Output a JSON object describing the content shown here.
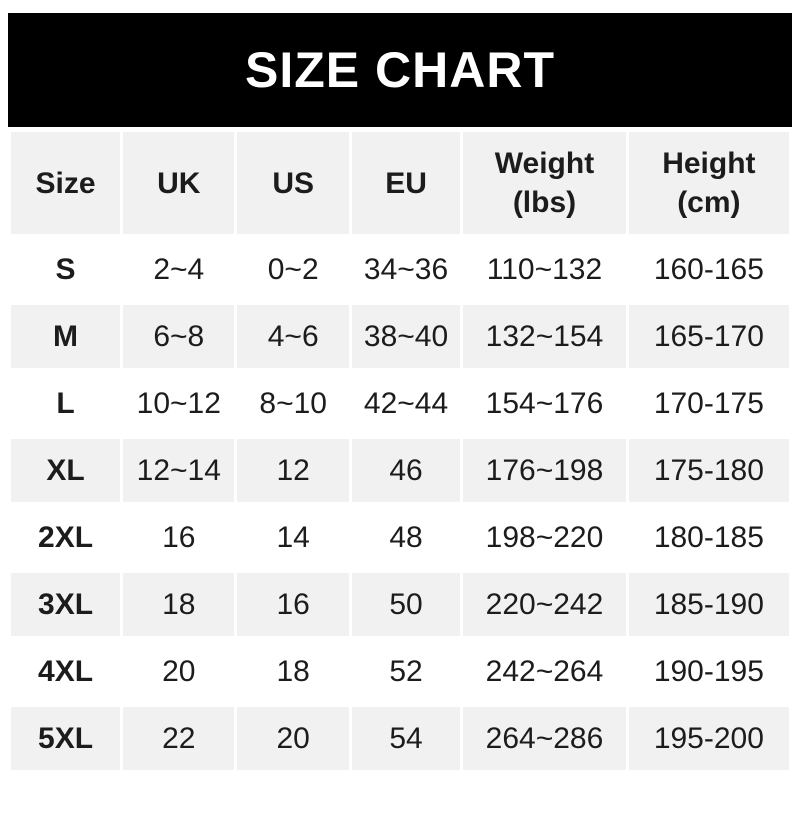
{
  "banner": {
    "title": "SIZE CHART"
  },
  "colors": {
    "banner_bg": "#000000",
    "banner_text": "#ffffff",
    "row_alt_bg": "#f1f1f1",
    "text": "#1c1c1c"
  },
  "header": {
    "cells": [
      {
        "line1": "Size",
        "line2": ""
      },
      {
        "line1": "UK",
        "line2": ""
      },
      {
        "line1": "US",
        "line2": ""
      },
      {
        "line1": "EU",
        "line2": ""
      },
      {
        "line1": "Weight",
        "line2": "(lbs)"
      },
      {
        "line1": "Height",
        "line2": "(cm)"
      }
    ]
  },
  "chart_data": {
    "type": "table",
    "title": "SIZE CHART",
    "columns": [
      "Size",
      "UK",
      "US",
      "EU",
      "Weight (lbs)",
      "Height (cm)"
    ],
    "rows": [
      [
        "S",
        "2~4",
        "0~2",
        "34~36",
        "110~132",
        "160-165"
      ],
      [
        "M",
        "6~8",
        "4~6",
        "38~40",
        "132~154",
        "165-170"
      ],
      [
        "L",
        "10~12",
        "8~10",
        "42~44",
        "154~176",
        "170-175"
      ],
      [
        "XL",
        "12~14",
        "12",
        "46",
        "176~198",
        "175-180"
      ],
      [
        "2XL",
        "16",
        "14",
        "48",
        "198~220",
        "180-185"
      ],
      [
        "3XL",
        "18",
        "16",
        "50",
        "220~242",
        "185-190"
      ],
      [
        "4XL",
        "20",
        "18",
        "52",
        "242~264",
        "190-195"
      ],
      [
        "5XL",
        "22",
        "20",
        "54",
        "264~286",
        "195-200"
      ]
    ]
  }
}
